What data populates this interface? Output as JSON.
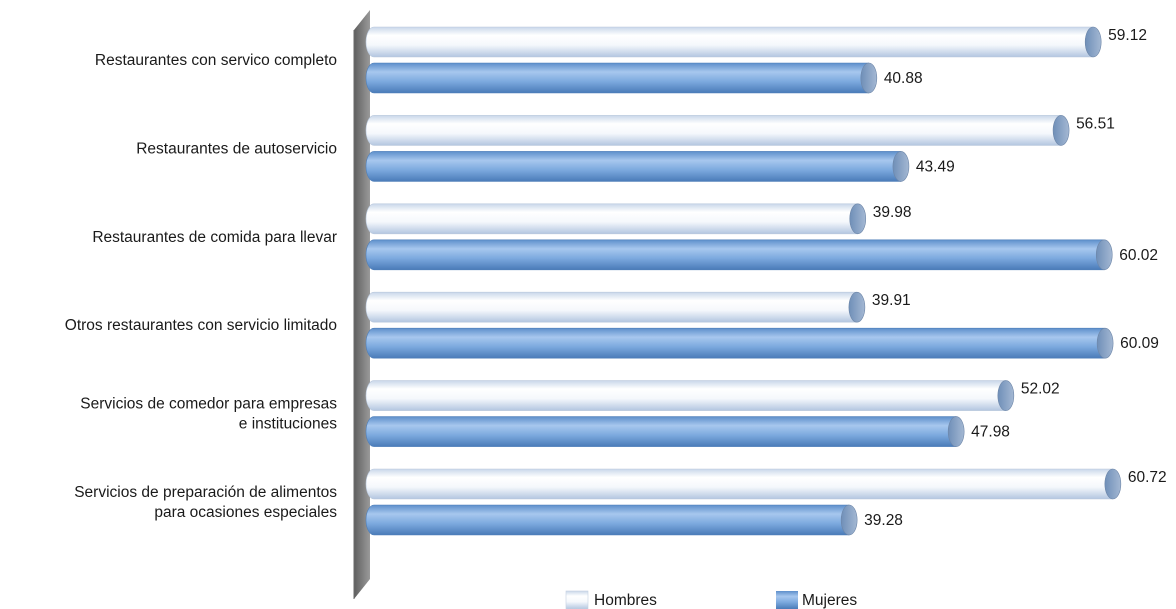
{
  "chart_data": {
    "type": "bar",
    "orientation": "horizontal",
    "categories": [
      [
        "Restaurantes con servico completo"
      ],
      [
        "Restaurantes de autoservicio"
      ],
      [
        "Restaurantes de comida para llevar"
      ],
      [
        "Otros restaurantes con servicio limitado"
      ],
      [
        "Servicios de comedor para empresas",
        "e instituciones"
      ],
      [
        "Servicios de preparación de alimentos",
        "para ocasiones especiales"
      ]
    ],
    "series": [
      {
        "name": "Hombres",
        "color": "#ffffff",
        "values": [
          59.12,
          56.51,
          39.98,
          39.91,
          52.02,
          60.72
        ]
      },
      {
        "name": "Mujeres",
        "color": "#7aa7dc",
        "values": [
          40.88,
          43.49,
          60.02,
          60.09,
          47.98,
          39.28
        ]
      }
    ],
    "xlim": [
      0,
      62.5
    ],
    "legend_position": "bottom",
    "grid": false,
    "style": "3d-cylinder"
  }
}
